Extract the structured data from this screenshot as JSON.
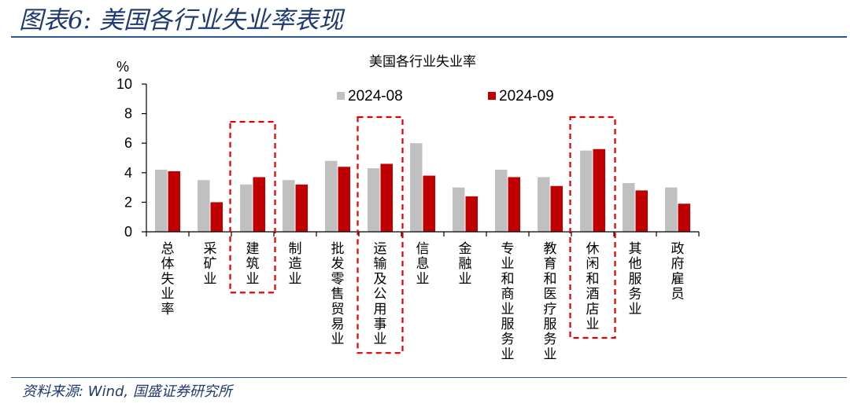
{
  "header": {
    "title": "图表6: 美国各行业失业率表现"
  },
  "footer": {
    "source": "资料来源: Wind, 国盛证券研究所"
  },
  "chart_data": {
    "type": "bar",
    "title": "美国各行业失业率",
    "ylabel": "%",
    "ylim": [
      0,
      10
    ],
    "yticks": [
      0,
      2,
      4,
      6,
      8,
      10
    ],
    "grid": false,
    "legend_position": "top",
    "categories": [
      "总体失业率",
      "采矿业",
      "建筑业",
      "制造业",
      "批发零售贸易业",
      "运输及公用事业",
      "信息业",
      "金融业",
      "专业和商业服务业",
      "教育和医疗服务业",
      "休闲和酒店业",
      "其他服务业",
      "政府雇员"
    ],
    "series": [
      {
        "name": "2024-08",
        "color": "#c0c0c0",
        "values": [
          4.2,
          3.5,
          3.2,
          3.5,
          4.8,
          4.3,
          6.0,
          3.0,
          4.2,
          3.7,
          5.5,
          3.3,
          3.0
        ]
      },
      {
        "name": "2024-09",
        "color": "#c00000",
        "values": [
          4.1,
          2.0,
          3.7,
          3.2,
          4.4,
          4.6,
          3.8,
          2.4,
          3.7,
          3.1,
          5.6,
          2.8,
          1.9
        ]
      }
    ],
    "highlighted_categories": [
      "建筑业",
      "运输及公用事业",
      "休闲和酒店业"
    ],
    "highlight_color": "#e00000"
  }
}
